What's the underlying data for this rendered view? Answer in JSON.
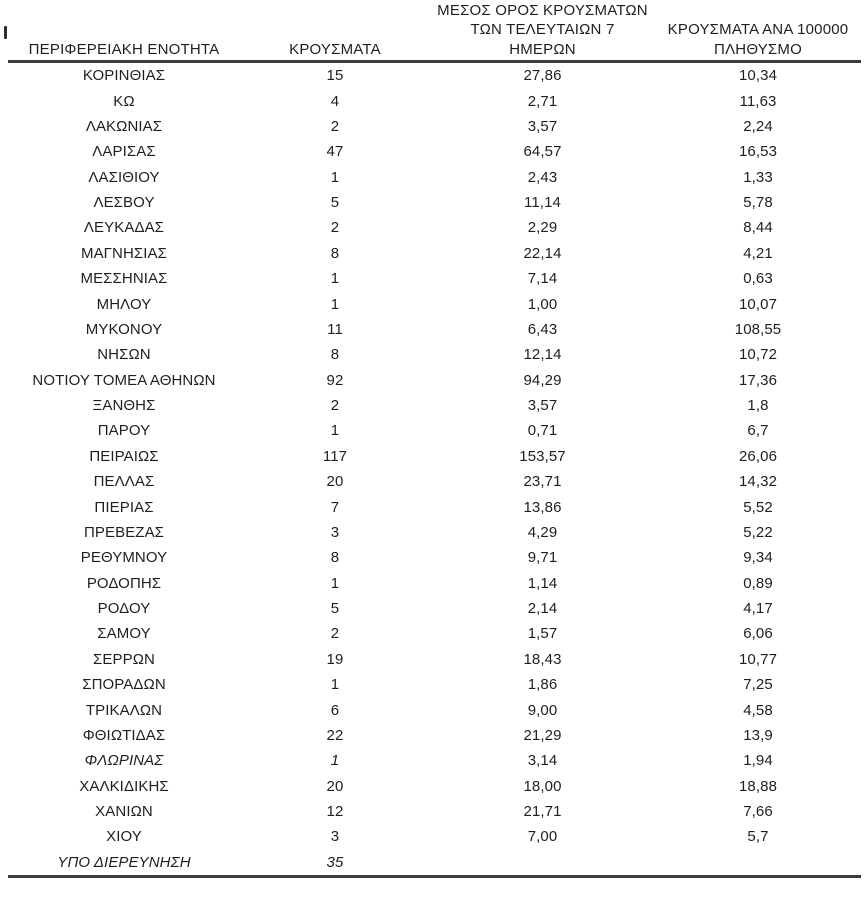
{
  "colors": {
    "text": "#1f1f1f",
    "rule": "#3c3c3c",
    "background": "#ffffff"
  },
  "table": {
    "columns": [
      {
        "id": "region",
        "label": "ΠΕΡΙΦΕΡΕΙΑΚΗ ΕΝΟΤΗΤΑ"
      },
      {
        "id": "cases",
        "label": "ΚΡΟΥΣΜΑΤΑ"
      },
      {
        "id": "avg7",
        "label": "ΜΕΣΟΣ ΟΡΟΣ ΚΡΟΥΣΜΑΤΩΝ\nΤΩΝ ΤΕΛΕΥΤΑΙΩΝ 7\nΗΜΕΡΩΝ"
      },
      {
        "id": "per100k",
        "label": "ΚΡΟΥΣΜΑΤΑ ΑΝΑ 100000\nΠΛΗΘΥΣΜΟ"
      }
    ],
    "rows": [
      {
        "region": "ΚΟΡΙΝΘΙΑΣ",
        "cases": "15",
        "avg7": "27,86",
        "per100k": "10,34",
        "italic": false
      },
      {
        "region": "ΚΩ",
        "cases": "4",
        "avg7": "2,71",
        "per100k": "11,63",
        "italic": false
      },
      {
        "region": "ΛΑΚΩΝΙΑΣ",
        "cases": "2",
        "avg7": "3,57",
        "per100k": "2,24",
        "italic": false
      },
      {
        "region": "ΛΑΡΙΣΑΣ",
        "cases": "47",
        "avg7": "64,57",
        "per100k": "16,53",
        "italic": false
      },
      {
        "region": "ΛΑΣΙΘΙΟΥ",
        "cases": "1",
        "avg7": "2,43",
        "per100k": "1,33",
        "italic": false
      },
      {
        "region": "ΛΕΣΒΟΥ",
        "cases": "5",
        "avg7": "11,14",
        "per100k": "5,78",
        "italic": false
      },
      {
        "region": "ΛΕΥΚΑΔΑΣ",
        "cases": "2",
        "avg7": "2,29",
        "per100k": "8,44",
        "italic": false
      },
      {
        "region": "ΜΑΓΝΗΣΙΑΣ",
        "cases": "8",
        "avg7": "22,14",
        "per100k": "4,21",
        "italic": false
      },
      {
        "region": "ΜΕΣΣΗΝΙΑΣ",
        "cases": "1",
        "avg7": "7,14",
        "per100k": "0,63",
        "italic": false
      },
      {
        "region": "ΜΗΛΟΥ",
        "cases": "1",
        "avg7": "1,00",
        "per100k": "10,07",
        "italic": false
      },
      {
        "region": "ΜΥΚΟΝΟΥ",
        "cases": "11",
        "avg7": "6,43",
        "per100k": "108,55",
        "italic": false
      },
      {
        "region": "ΝΗΣΩΝ",
        "cases": "8",
        "avg7": "12,14",
        "per100k": "10,72",
        "italic": false
      },
      {
        "region": "ΝΟΤΙΟΥ ΤΟΜΕΑ ΑΘΗΝΩΝ",
        "cases": "92",
        "avg7": "94,29",
        "per100k": "17,36",
        "italic": false
      },
      {
        "region": "ΞΑΝΘΗΣ",
        "cases": "2",
        "avg7": "3,57",
        "per100k": "1,8",
        "italic": false
      },
      {
        "region": "ΠΑΡΟΥ",
        "cases": "1",
        "avg7": "0,71",
        "per100k": "6,7",
        "italic": false
      },
      {
        "region": "ΠΕΙΡΑΙΩΣ",
        "cases": "117",
        "avg7": "153,57",
        "per100k": "26,06",
        "italic": false
      },
      {
        "region": "ΠΕΛΛΑΣ",
        "cases": "20",
        "avg7": "23,71",
        "per100k": "14,32",
        "italic": false
      },
      {
        "region": "ΠΙΕΡΙΑΣ",
        "cases": "7",
        "avg7": "13,86",
        "per100k": "5,52",
        "italic": false
      },
      {
        "region": "ΠΡΕΒΕΖΑΣ",
        "cases": "3",
        "avg7": "4,29",
        "per100k": "5,22",
        "italic": false
      },
      {
        "region": "ΡΕΘΥΜΝΟΥ",
        "cases": "8",
        "avg7": "9,71",
        "per100k": "9,34",
        "italic": false
      },
      {
        "region": "ΡΟΔΟΠΗΣ",
        "cases": "1",
        "avg7": "1,14",
        "per100k": "0,89",
        "italic": false
      },
      {
        "region": "ΡΟΔΟΥ",
        "cases": "5",
        "avg7": "2,14",
        "per100k": "4,17",
        "italic": false
      },
      {
        "region": "ΣΑΜΟΥ",
        "cases": "2",
        "avg7": "1,57",
        "per100k": "6,06",
        "italic": false
      },
      {
        "region": "ΣΕΡΡΩΝ",
        "cases": "19",
        "avg7": "18,43",
        "per100k": "10,77",
        "italic": false
      },
      {
        "region": "ΣΠΟΡΑΔΩΝ",
        "cases": "1",
        "avg7": "1,86",
        "per100k": "7,25",
        "italic": false
      },
      {
        "region": "ΤΡΙΚΑΛΩΝ",
        "cases": "6",
        "avg7": "9,00",
        "per100k": "4,58",
        "italic": false
      },
      {
        "region": "ΦΘΙΩΤΙΔΑΣ",
        "cases": "22",
        "avg7": "21,29",
        "per100k": "13,9",
        "italic": false
      },
      {
        "region": "ΦΛΩΡΙΝΑΣ",
        "cases": "1",
        "avg7": "3,14",
        "per100k": "1,94",
        "italic": true
      },
      {
        "region": "ΧΑΛΚΙΔΙΚΗΣ",
        "cases": "20",
        "avg7": "18,00",
        "per100k": "18,88",
        "italic": false
      },
      {
        "region": "ΧΑΝΙΩΝ",
        "cases": "12",
        "avg7": "21,71",
        "per100k": "7,66",
        "italic": false
      },
      {
        "region": "ΧΙΟΥ",
        "cases": "3",
        "avg7": "7,00",
        "per100k": "5,7",
        "italic": false
      },
      {
        "region": "ΥΠΟ ΔΙΕΡΕΥΝΗΣΗ",
        "cases": "35",
        "avg7": "",
        "per100k": "",
        "italic": true
      }
    ]
  }
}
